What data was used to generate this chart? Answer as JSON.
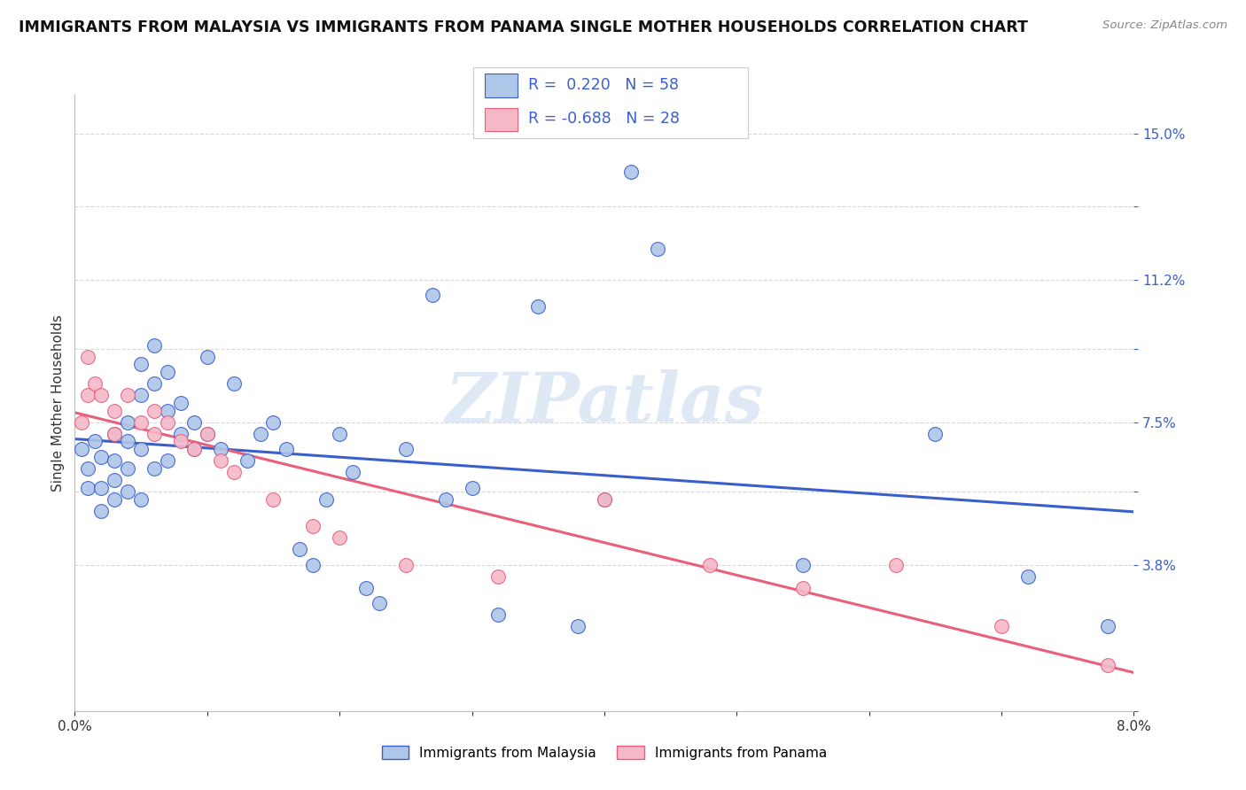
{
  "title": "IMMIGRANTS FROM MALAYSIA VS IMMIGRANTS FROM PANAMA SINGLE MOTHER HOUSEHOLDS CORRELATION CHART",
  "source": "Source: ZipAtlas.com",
  "ylabel": "Single Mother Households",
  "r_malaysia": 0.22,
  "n_malaysia": 58,
  "r_panama": -0.688,
  "n_panama": 28,
  "color_malaysia": "#aec6e8",
  "color_panama": "#f5b8c8",
  "line_color_malaysia": "#3a5fcd",
  "line_color_panama": "#e8607a",
  "watermark": "ZIPatlas",
  "xlim": [
    0.0,
    0.08
  ],
  "ylim": [
    0.0,
    0.16
  ],
  "ytick_labels": [
    "",
    "3.8%",
    "",
    "7.5%",
    "",
    "11.2%",
    "",
    "15.0%"
  ],
  "ytick_values": [
    0.0,
    0.038,
    0.057,
    0.075,
    0.094,
    0.112,
    0.131,
    0.15
  ],
  "xtick_labels": [
    "0.0%",
    "",
    "",
    "",
    "",
    "",
    "",
    "",
    "8.0%"
  ],
  "xtick_values": [
    0.0,
    0.01,
    0.02,
    0.03,
    0.04,
    0.05,
    0.06,
    0.07,
    0.08
  ],
  "malaysia_x": [
    0.0005,
    0.001,
    0.001,
    0.0015,
    0.002,
    0.002,
    0.002,
    0.003,
    0.003,
    0.003,
    0.003,
    0.004,
    0.004,
    0.004,
    0.004,
    0.005,
    0.005,
    0.005,
    0.005,
    0.006,
    0.006,
    0.006,
    0.007,
    0.007,
    0.007,
    0.008,
    0.008,
    0.009,
    0.009,
    0.01,
    0.01,
    0.011,
    0.012,
    0.013,
    0.014,
    0.015,
    0.016,
    0.017,
    0.018,
    0.019,
    0.02,
    0.021,
    0.022,
    0.023,
    0.025,
    0.027,
    0.028,
    0.03,
    0.032,
    0.035,
    0.038,
    0.04,
    0.042,
    0.044,
    0.055,
    0.065,
    0.072,
    0.078
  ],
  "malaysia_y": [
    0.068,
    0.063,
    0.058,
    0.07,
    0.066,
    0.058,
    0.052,
    0.072,
    0.065,
    0.06,
    0.055,
    0.075,
    0.07,
    0.063,
    0.057,
    0.09,
    0.082,
    0.068,
    0.055,
    0.095,
    0.085,
    0.063,
    0.088,
    0.078,
    0.065,
    0.08,
    0.072,
    0.075,
    0.068,
    0.092,
    0.072,
    0.068,
    0.085,
    0.065,
    0.072,
    0.075,
    0.068,
    0.042,
    0.038,
    0.055,
    0.072,
    0.062,
    0.032,
    0.028,
    0.068,
    0.108,
    0.055,
    0.058,
    0.025,
    0.105,
    0.022,
    0.055,
    0.14,
    0.12,
    0.038,
    0.072,
    0.035,
    0.022
  ],
  "panama_x": [
    0.0005,
    0.001,
    0.001,
    0.0015,
    0.002,
    0.003,
    0.003,
    0.004,
    0.005,
    0.006,
    0.006,
    0.007,
    0.008,
    0.009,
    0.01,
    0.011,
    0.012,
    0.015,
    0.018,
    0.02,
    0.025,
    0.032,
    0.04,
    0.048,
    0.055,
    0.062,
    0.07,
    0.078
  ],
  "panama_y": [
    0.075,
    0.082,
    0.092,
    0.085,
    0.082,
    0.078,
    0.072,
    0.082,
    0.075,
    0.078,
    0.072,
    0.075,
    0.07,
    0.068,
    0.072,
    0.065,
    0.062,
    0.055,
    0.048,
    0.045,
    0.038,
    0.035,
    0.055,
    0.038,
    0.032,
    0.038,
    0.022,
    0.012
  ],
  "background_color": "#ffffff",
  "grid_color": "#d8d8d8",
  "title_fontsize": 12.5,
  "label_fontsize": 11,
  "tick_fontsize": 11,
  "tick_color_right": "#3a5fcd"
}
